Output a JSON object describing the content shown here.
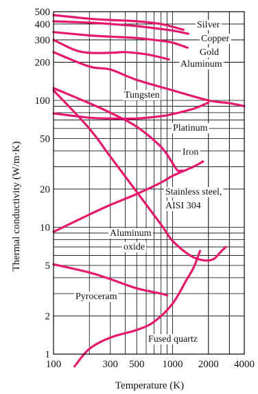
{
  "chart_data": {
    "type": "line",
    "title": "",
    "xlabel": "Temperature (K)",
    "ylabel": "Thermal conductivity (W/m·K)",
    "x_scale": "log",
    "y_scale": "log",
    "xlim": [
      100,
      4000
    ],
    "ylim": [
      1,
      500
    ],
    "grid": true,
    "x_ticks": [
      100,
      300,
      500,
      1000,
      2000,
      4000
    ],
    "x_tick_labels": [
      "100",
      "300",
      "500",
      "1000",
      "2000",
      "4000"
    ],
    "y_ticks": [
      1,
      2,
      5,
      10,
      20,
      50,
      100,
      200,
      300,
      400,
      500
    ],
    "y_tick_labels": [
      "1",
      "2",
      "5",
      "10",
      "20",
      "50",
      "100",
      "200",
      "300",
      "400",
      "500"
    ],
    "line_color": "#e6186e",
    "series": [
      {
        "name": "Silver",
        "label": [
          "Silver"
        ],
        "points": [
          [
            100,
            470
          ],
          [
            200,
            440
          ],
          [
            300,
            430
          ],
          [
            500,
            420
          ],
          [
            800,
            400
          ],
          [
            1000,
            380
          ],
          [
            1234,
            360
          ]
        ]
      },
      {
        "name": "Copper",
        "label": [
          "Copper"
        ],
        "points": [
          [
            100,
            420
          ],
          [
            200,
            410
          ],
          [
            300,
            400
          ],
          [
            500,
            385
          ],
          [
            800,
            365
          ],
          [
            1000,
            355
          ],
          [
            1356,
            335
          ]
        ]
      },
      {
        "name": "Gold",
        "label": [
          "Gold"
        ],
        "points": [
          [
            100,
            345
          ],
          [
            200,
            325
          ],
          [
            300,
            318
          ],
          [
            500,
            310
          ],
          [
            800,
            295
          ],
          [
            1000,
            285
          ],
          [
            1336,
            260
          ]
        ]
      },
      {
        "name": "Aluminum",
        "label": [
          "Aluminum"
        ],
        "points": [
          [
            100,
            300
          ],
          [
            150,
            250
          ],
          [
            200,
            237
          ],
          [
            300,
            237
          ],
          [
            400,
            240
          ],
          [
            600,
            231
          ],
          [
            800,
            218
          ],
          [
            933,
            210
          ]
        ]
      },
      {
        "name": "Tungsten",
        "label": [
          "Tungsten"
        ],
        "points": [
          [
            100,
            240
          ],
          [
            200,
            185
          ],
          [
            300,
            175
          ],
          [
            500,
            145
          ],
          [
            1000,
            120
          ],
          [
            2000,
            100
          ],
          [
            3000,
            95
          ],
          [
            4000,
            90
          ]
        ]
      },
      {
        "name": "Platinum",
        "label": [
          "Platinum"
        ],
        "points": [
          [
            100,
            79
          ],
          [
            200,
            73
          ],
          [
            300,
            72
          ],
          [
            500,
            72
          ],
          [
            800,
            75
          ],
          [
            1000,
            78
          ],
          [
            1500,
            86
          ],
          [
            2000,
            96
          ]
        ]
      },
      {
        "name": "Iron",
        "label": [
          "Iron"
        ],
        "points": [
          [
            100,
            125
          ],
          [
            200,
            95
          ],
          [
            300,
            80
          ],
          [
            500,
            62
          ],
          [
            800,
            43
          ],
          [
            1000,
            32
          ],
          [
            1100,
            28
          ],
          [
            1200,
            28
          ]
        ]
      },
      {
        "name": "Stainless steel, AISI 304",
        "label": [
          "Stainless steel,",
          "AISI 304"
        ],
        "points": [
          [
            100,
            9.2
          ],
          [
            200,
            12.6
          ],
          [
            300,
            15
          ],
          [
            500,
            18.3
          ],
          [
            800,
            22.5
          ],
          [
            1000,
            25.4
          ],
          [
            1500,
            30
          ],
          [
            1800,
            33
          ]
        ]
      },
      {
        "name": "Aluminum oxide",
        "label": [
          "Aluminum",
          "oxide"
        ],
        "points": [
          [
            100,
            120
          ],
          [
            200,
            60
          ],
          [
            300,
            36
          ],
          [
            500,
            19
          ],
          [
            800,
            10.5
          ],
          [
            1000,
            7.8
          ],
          [
            1400,
            6
          ],
          [
            1800,
            5.5
          ],
          [
            2200,
            5.6
          ],
          [
            2500,
            6.3
          ],
          [
            2800,
            7
          ]
        ]
      },
      {
        "name": "Pyroceram",
        "label": [
          "Pyroceram"
        ],
        "points": [
          [
            100,
            5.1
          ],
          [
            200,
            4.4
          ],
          [
            300,
            3.9
          ],
          [
            500,
            3.3
          ],
          [
            800,
            3
          ],
          [
            900,
            2.9
          ]
        ]
      },
      {
        "name": "Fused quartz",
        "label": [
          "Fused quartz"
        ],
        "points": [
          [
            150,
            0.8
          ],
          [
            200,
            1.1
          ],
          [
            300,
            1.35
          ],
          [
            500,
            1.55
          ],
          [
            700,
            1.8
          ],
          [
            1000,
            2.5
          ],
          [
            1300,
            3.8
          ],
          [
            1500,
            4.8
          ],
          [
            1700,
            6.5
          ]
        ]
      }
    ]
  }
}
